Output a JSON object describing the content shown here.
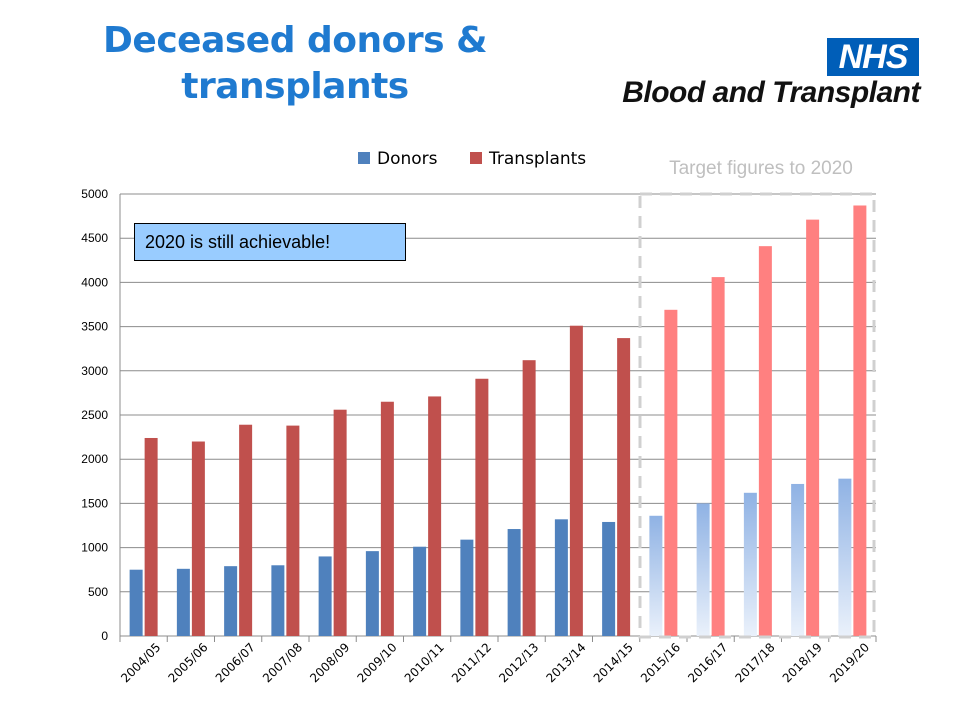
{
  "header": {
    "title_line1": "Deceased donors &",
    "title_line2": "transplants",
    "logo_badge": "NHS",
    "logo_text": "Blood and Transplant"
  },
  "annotations": {
    "target_label": "Target figures to 2020",
    "callout": "2020 is still achievable!"
  },
  "colors": {
    "donors": "#4f81bd",
    "transplants": "#c0504d",
    "target_donors": "#a9c4eb",
    "target_transplants": "#ff8080"
  },
  "chart_data": {
    "type": "bar",
    "categories": [
      "2004/05",
      "2005/06",
      "2006/07",
      "2007/08",
      "2008/09",
      "2009/10",
      "2010/11",
      "2011/12",
      "2012/13",
      "2013/14",
      "2014/15",
      "2015/16",
      "2016/17",
      "2017/18",
      "2018/19",
      "2019/20"
    ],
    "series": [
      {
        "name": "Donors",
        "values": [
          750,
          760,
          790,
          800,
          900,
          960,
          1010,
          1090,
          1210,
          1320,
          1290,
          1360,
          1500,
          1620,
          1720,
          1780
        ]
      },
      {
        "name": "Transplants",
        "values": [
          2240,
          2200,
          2390,
          2380,
          2560,
          2650,
          2710,
          2910,
          3120,
          3510,
          3370,
          3690,
          4060,
          4410,
          4710,
          4870
        ]
      }
    ],
    "target_start_index": 11,
    "ylim": [
      0,
      5000
    ],
    "yticks": [
      0,
      500,
      1000,
      1500,
      2000,
      2500,
      3000,
      3500,
      4000,
      4500,
      5000
    ],
    "grid": true,
    "legend": "top-center",
    "title": "",
    "xlabel": "",
    "ylabel": ""
  }
}
